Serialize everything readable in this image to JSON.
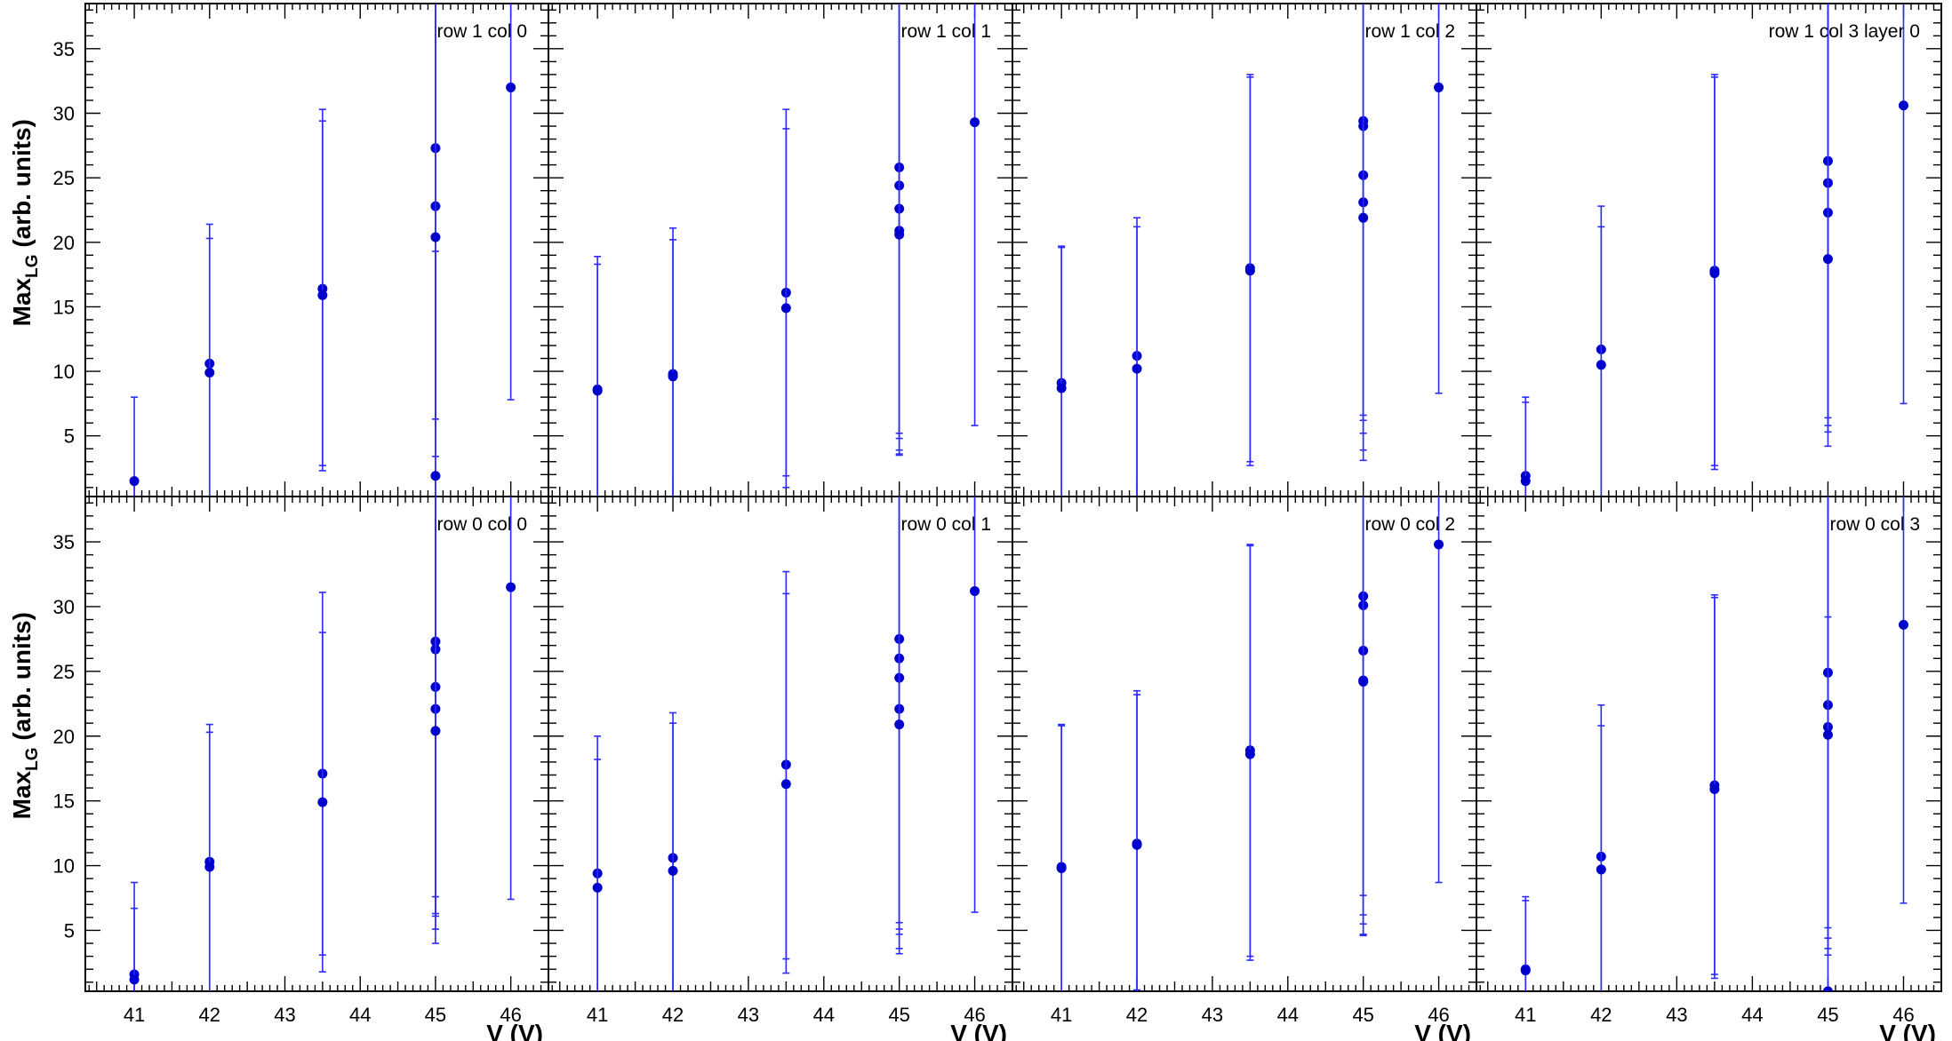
{
  "chart_data": {
    "type": "scatter",
    "x_axis_label": "V (V)",
    "y_axis_label_main": "Max",
    "y_axis_label_sub": "LG",
    "y_axis_label_units": " (arb. units)",
    "xlim": [
      40.35,
      46.5
    ],
    "ylim": [
      0.3,
      38.5
    ],
    "x_ticks": [
      "41",
      "42",
      "43",
      "44",
      "45",
      "46"
    ],
    "y_ticks": [
      "5",
      "10",
      "15",
      "20",
      "25",
      "30",
      "35"
    ],
    "marker_color": "#0000cc",
    "errorbar_color": "#2b2bff",
    "panels": [
      {
        "label": "row 1 col 0",
        "row": 0,
        "col": 0,
        "points": [
          {
            "x": 41,
            "y": 1.5,
            "ylo": 0,
            "yhi": 8.0
          },
          {
            "x": 42,
            "y": 10.6,
            "ylo": 0,
            "yhi": 21.4
          },
          {
            "x": 42,
            "y": 9.9,
            "ylo": 0,
            "yhi": 20.3
          },
          {
            "x": 43.5,
            "y": 16.4,
            "ylo": 2.7,
            "yhi": 30.3
          },
          {
            "x": 43.5,
            "y": 15.9,
            "ylo": 2.3,
            "yhi": 29.4
          },
          {
            "x": 45,
            "y": 27.3,
            "ylo": 0,
            "yhi": 38.5
          },
          {
            "x": 45,
            "y": 22.8,
            "ylo": 6.3,
            "yhi": 38.5
          },
          {
            "x": 45,
            "y": 20.4,
            "ylo": 3.4,
            "yhi": 38.5
          },
          {
            "x": 45,
            "y": 1.9,
            "ylo": 0,
            "yhi": 19.3
          },
          {
            "x": 46,
            "y": 32.0,
            "ylo": 7.8,
            "yhi": 38.5
          }
        ]
      },
      {
        "label": "row 1 col 1",
        "row": 0,
        "col": 1,
        "points": [
          {
            "x": 41,
            "y": 8.6,
            "ylo": 0,
            "yhi": 18.9
          },
          {
            "x": 41,
            "y": 8.5,
            "ylo": 0,
            "yhi": 18.3
          },
          {
            "x": 42,
            "y": 9.8,
            "ylo": 0,
            "yhi": 21.1
          },
          {
            "x": 42,
            "y": 9.6,
            "ylo": 0,
            "yhi": 20.2
          },
          {
            "x": 43.5,
            "y": 16.1,
            "ylo": 1.9,
            "yhi": 30.3
          },
          {
            "x": 43.5,
            "y": 14.9,
            "ylo": 1.0,
            "yhi": 28.8
          },
          {
            "x": 45,
            "y": 25.8,
            "ylo": 5.2,
            "yhi": 38.5
          },
          {
            "x": 45,
            "y": 24.4,
            "ylo": 4.8,
            "yhi": 38.5
          },
          {
            "x": 45,
            "y": 22.6,
            "ylo": 3.9,
            "yhi": 38.5
          },
          {
            "x": 45,
            "y": 20.9,
            "ylo": 3.5,
            "yhi": 38.5
          },
          {
            "x": 45,
            "y": 20.6,
            "ylo": 3.6,
            "yhi": 38.5
          },
          {
            "x": 46,
            "y": 29.3,
            "ylo": 5.8,
            "yhi": 38.5
          }
        ]
      },
      {
        "label": "row 1 col 2",
        "row": 0,
        "col": 2,
        "points": [
          {
            "x": 41,
            "y": 9.1,
            "ylo": 0,
            "yhi": 19.7
          },
          {
            "x": 41,
            "y": 8.7,
            "ylo": 0,
            "yhi": 19.6
          },
          {
            "x": 42,
            "y": 11.2,
            "ylo": 0.2,
            "yhi": 21.9
          },
          {
            "x": 42,
            "y": 10.2,
            "ylo": 0,
            "yhi": 21.2
          },
          {
            "x": 43.5,
            "y": 18.0,
            "ylo": 3.0,
            "yhi": 33.0
          },
          {
            "x": 43.5,
            "y": 17.8,
            "ylo": 2.7,
            "yhi": 32.8
          },
          {
            "x": 45,
            "y": 29.4,
            "ylo": 6.6,
            "yhi": 38.5
          },
          {
            "x": 45,
            "y": 29.0,
            "ylo": 6.2,
            "yhi": 38.5
          },
          {
            "x": 45,
            "y": 25.2,
            "ylo": 5.2,
            "yhi": 38.5
          },
          {
            "x": 45,
            "y": 23.1,
            "ylo": 3.9,
            "yhi": 38.5
          },
          {
            "x": 45,
            "y": 21.9,
            "ylo": 3.1,
            "yhi": 38.5
          },
          {
            "x": 46,
            "y": 32.0,
            "ylo": 8.3,
            "yhi": 38.5
          }
        ]
      },
      {
        "label": "row 1 col 3 layer 0",
        "row": 0,
        "col": 3,
        "points": [
          {
            "x": 41,
            "y": 1.9,
            "ylo": 0,
            "yhi": 8.0
          },
          {
            "x": 41,
            "y": 1.5,
            "ylo": 0,
            "yhi": 7.6
          },
          {
            "x": 42,
            "y": 11.7,
            "ylo": 0.2,
            "yhi": 22.8
          },
          {
            "x": 42,
            "y": 10.5,
            "ylo": 0,
            "yhi": 21.2
          },
          {
            "x": 43.5,
            "y": 17.8,
            "ylo": 2.7,
            "yhi": 33.0
          },
          {
            "x": 43.5,
            "y": 17.6,
            "ylo": 2.4,
            "yhi": 32.8
          },
          {
            "x": 45,
            "y": 26.3,
            "ylo": 6.4,
            "yhi": 38.5
          },
          {
            "x": 45,
            "y": 24.6,
            "ylo": 5.8,
            "yhi": 38.5
          },
          {
            "x": 45,
            "y": 22.3,
            "ylo": 5.3,
            "yhi": 38.5
          },
          {
            "x": 45,
            "y": 18.7,
            "ylo": 4.2,
            "yhi": 38.5
          },
          {
            "x": 46,
            "y": 30.6,
            "ylo": 7.5,
            "yhi": 38.5
          }
        ]
      },
      {
        "label": "row 0 col 0",
        "row": 1,
        "col": 0,
        "points": [
          {
            "x": 41,
            "y": 1.6,
            "ylo": 0,
            "yhi": 8.7
          },
          {
            "x": 41,
            "y": 1.2,
            "ylo": 0,
            "yhi": 6.7
          },
          {
            "x": 42,
            "y": 10.3,
            "ylo": 0,
            "yhi": 20.9
          },
          {
            "x": 42,
            "y": 9.9,
            "ylo": 0,
            "yhi": 20.3
          },
          {
            "x": 43.5,
            "y": 17.1,
            "ylo": 3.1,
            "yhi": 31.1
          },
          {
            "x": 43.5,
            "y": 14.9,
            "ylo": 1.8,
            "yhi": 28.0
          },
          {
            "x": 45,
            "y": 27.3,
            "ylo": 7.6,
            "yhi": 38.5
          },
          {
            "x": 45,
            "y": 26.7,
            "ylo": 6.3,
            "yhi": 38.5
          },
          {
            "x": 45,
            "y": 23.8,
            "ylo": 6.1,
            "yhi": 38.5
          },
          {
            "x": 45,
            "y": 22.1,
            "ylo": 5.1,
            "yhi": 38.5
          },
          {
            "x": 45,
            "y": 20.4,
            "ylo": 4.0,
            "yhi": 38.5
          },
          {
            "x": 46,
            "y": 31.5,
            "ylo": 7.4,
            "yhi": 38.5
          }
        ]
      },
      {
        "label": "row 0 col 1",
        "row": 1,
        "col": 1,
        "points": [
          {
            "x": 41,
            "y": 9.4,
            "ylo": 0,
            "yhi": 20.0
          },
          {
            "x": 41,
            "y": 8.3,
            "ylo": 0,
            "yhi": 18.2
          },
          {
            "x": 42,
            "y": 10.6,
            "ylo": 0,
            "yhi": 21.8
          },
          {
            "x": 42,
            "y": 9.6,
            "ylo": 0,
            "yhi": 21.0
          },
          {
            "x": 43.5,
            "y": 17.8,
            "ylo": 2.8,
            "yhi": 32.7
          },
          {
            "x": 43.5,
            "y": 16.3,
            "ylo": 1.7,
            "yhi": 31.0
          },
          {
            "x": 45,
            "y": 27.5,
            "ylo": 5.6,
            "yhi": 38.5
          },
          {
            "x": 45,
            "y": 26.0,
            "ylo": 5.1,
            "yhi": 38.5
          },
          {
            "x": 45,
            "y": 24.5,
            "ylo": 4.7,
            "yhi": 38.5
          },
          {
            "x": 45,
            "y": 22.1,
            "ylo": 3.6,
            "yhi": 38.5
          },
          {
            "x": 45,
            "y": 20.9,
            "ylo": 3.2,
            "yhi": 38.5
          },
          {
            "x": 46,
            "y": 31.2,
            "ylo": 6.4,
            "yhi": 38.5
          }
        ]
      },
      {
        "label": "row 0 col 2",
        "row": 1,
        "col": 2,
        "points": [
          {
            "x": 41,
            "y": 9.9,
            "ylo": 0,
            "yhi": 20.9
          },
          {
            "x": 41,
            "y": 9.8,
            "ylo": 0,
            "yhi": 20.8
          },
          {
            "x": 42,
            "y": 11.7,
            "ylo": 0.4,
            "yhi": 23.5
          },
          {
            "x": 42,
            "y": 11.6,
            "ylo": 0.3,
            "yhi": 23.2
          },
          {
            "x": 43.5,
            "y": 18.9,
            "ylo": 3.0,
            "yhi": 34.8
          },
          {
            "x": 43.5,
            "y": 18.6,
            "ylo": 2.7,
            "yhi": 34.7
          },
          {
            "x": 45,
            "y": 30.8,
            "ylo": 7.7,
            "yhi": 38.5
          },
          {
            "x": 45,
            "y": 30.1,
            "ylo": 6.2,
            "yhi": 38.5
          },
          {
            "x": 45,
            "y": 26.6,
            "ylo": 5.5,
            "yhi": 38.5
          },
          {
            "x": 45,
            "y": 24.3,
            "ylo": 4.7,
            "yhi": 38.5
          },
          {
            "x": 45,
            "y": 24.2,
            "ylo": 4.6,
            "yhi": 38.5
          },
          {
            "x": 46,
            "y": 34.8,
            "ylo": 8.7,
            "yhi": 38.5
          }
        ]
      },
      {
        "label": "row 0 col 3",
        "row": 1,
        "col": 3,
        "points": [
          {
            "x": 41,
            "y": 2.0,
            "ylo": 0,
            "yhi": 7.6
          },
          {
            "x": 41,
            "y": 1.9,
            "ylo": 0,
            "yhi": 7.3
          },
          {
            "x": 42,
            "y": 10.7,
            "ylo": 0,
            "yhi": 22.4
          },
          {
            "x": 42,
            "y": 9.7,
            "ylo": 0,
            "yhi": 20.8
          },
          {
            "x": 43.5,
            "y": 16.2,
            "ylo": 1.6,
            "yhi": 30.9
          },
          {
            "x": 43.5,
            "y": 15.9,
            "ylo": 1.3,
            "yhi": 30.7
          },
          {
            "x": 45,
            "y": 24.9,
            "ylo": 5.2,
            "yhi": 38.5
          },
          {
            "x": 45,
            "y": 22.4,
            "ylo": 4.4,
            "yhi": 38.5
          },
          {
            "x": 45,
            "y": 20.7,
            "ylo": 3.6,
            "yhi": 38.5
          },
          {
            "x": 45,
            "y": 20.1,
            "ylo": 3.1,
            "yhi": 29.2
          },
          {
            "x": 45,
            "y": 0.3,
            "ylo": 0,
            "yhi": 4.4
          },
          {
            "x": 46,
            "y": 28.6,
            "ylo": 7.1,
            "yhi": 38.5
          }
        ]
      }
    ]
  }
}
